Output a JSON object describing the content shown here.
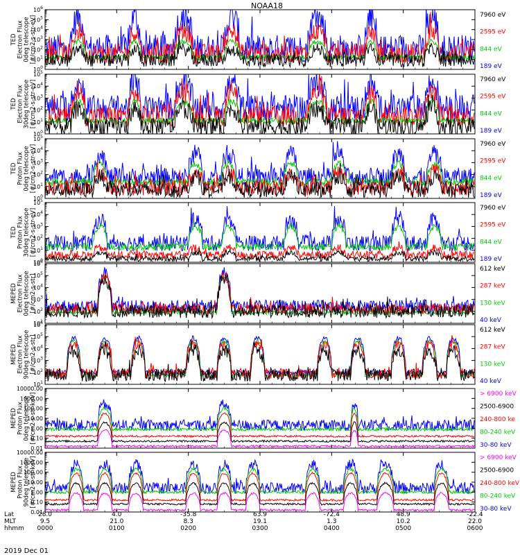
{
  "chart_data": {
    "type": "line",
    "title": "NOAA18",
    "date_label": "2019 Dec 01",
    "time_axis": {
      "row_labels": [
        "Lat",
        "MLT",
        "hhmm"
      ],
      "ticks": [
        {
          "lat": "28.0",
          "mlt": "9.5",
          "hhmm": "0000"
        },
        {
          "lat": "4.0",
          "mlt": "21.0",
          "hhmm": "0100"
        },
        {
          "lat": "-35.8",
          "mlt": "8.3",
          "hhmm": "0200"
        },
        {
          "lat": "63.9",
          "mlt": "19.1",
          "hhmm": "0300"
        },
        {
          "lat": "-72.4",
          "mlt": "1.3",
          "hhmm": "0400"
        },
        {
          "lat": "48.9",
          "mlt": "10.2",
          "hhmm": "0500"
        },
        {
          "lat": "-22.4",
          "mlt": "22.0",
          "hhmm": "0600"
        }
      ],
      "range_minutes": [
        0,
        360
      ]
    },
    "panels": [
      {
        "id": "ted-electron-0deg",
        "ylabel": [
          "TED",
          "Electron Flux",
          "0deg telescope",
          "[#/cm2-s-str-eV]"
        ],
        "yscale": "log",
        "ylim_exp": [
          0,
          6
        ],
        "ytick_labels": [
          "10^0",
          "10^1",
          "10^2",
          "10^3",
          "10^4",
          "10^5",
          "10^6"
        ],
        "legend": [
          {
            "label": "7960 eV",
            "color": "#000000"
          },
          {
            "label": "2595 eV",
            "color": "#ff0000"
          },
          {
            "label": "844 eV",
            "color": "#00cc00"
          },
          {
            "label": "189 eV",
            "color": "#0000ff"
          }
        ],
        "series": [
          {
            "color": "#0000ff",
            "base": 2.1,
            "peak": 5.2,
            "noise": 1.3,
            "spiky": true
          },
          {
            "color": "#ff0000",
            "base": 1.6,
            "peak": 3.8,
            "noise": 0.9,
            "spiky": true
          },
          {
            "color": "#00cc00",
            "base": 1.2,
            "peak": 2.8,
            "noise": 0.5,
            "spiky": false
          },
          {
            "color": "#000000",
            "base": 0.9,
            "peak": 2.0,
            "noise": 0.6,
            "spiky": true
          }
        ],
        "events": [
          [
            22,
            34
          ],
          [
            70,
            80
          ],
          [
            108,
            124
          ],
          [
            150,
            163
          ],
          [
            220,
            236
          ],
          [
            268,
            278
          ],
          [
            318,
            330
          ]
        ]
      },
      {
        "id": "ted-electron-30deg",
        "ylabel": [
          "TED",
          "Electron Flux",
          "30deg telescope",
          "[#/cm2-s-str-eV]"
        ],
        "yscale": "log",
        "ylim_exp": [
          0,
          5
        ],
        "ytick_labels": [
          "10^0",
          "10^1",
          "10^2",
          "10^3",
          "10^4",
          "10^5"
        ],
        "legend": [
          {
            "label": "7960 eV",
            "color": "#000000"
          },
          {
            "label": "2595 eV",
            "color": "#ff0000"
          },
          {
            "label": "844 eV",
            "color": "#00cc00"
          },
          {
            "label": "189 eV",
            "color": "#0000ff"
          }
        ],
        "series": [
          {
            "color": "#0000ff",
            "base": 2.2,
            "peak": 4.2,
            "noise": 1.0,
            "spiky": true
          },
          {
            "color": "#ff0000",
            "base": 1.5,
            "peak": 3.4,
            "noise": 0.8,
            "spiky": true
          },
          {
            "color": "#00cc00",
            "base": 1.1,
            "peak": 2.7,
            "noise": 0.5,
            "spiky": false
          },
          {
            "color": "#000000",
            "base": 0.6,
            "peak": 2.1,
            "noise": 0.7,
            "spiky": true
          }
        ],
        "events": [
          [
            22,
            34
          ],
          [
            70,
            80
          ],
          [
            108,
            124
          ],
          [
            150,
            163
          ],
          [
            220,
            236
          ],
          [
            268,
            278
          ],
          [
            318,
            330
          ]
        ]
      },
      {
        "id": "ted-proton-0deg",
        "ylabel": [
          "TED",
          "Proton Flux",
          "0deg telescope",
          "[#/cm2-s-str-eV]"
        ],
        "yscale": "log",
        "ylim_exp": [
          0,
          5
        ],
        "ytick_labels": [
          "10^0",
          "10^1",
          "10^2",
          "10^3",
          "10^4",
          "10^5"
        ],
        "legend": [
          {
            "label": "7960 eV",
            "color": "#000000"
          },
          {
            "label": "2595 eV",
            "color": "#ff0000"
          },
          {
            "label": "844 eV",
            "color": "#00cc00"
          },
          {
            "label": "189 eV",
            "color": "#0000ff"
          }
        ],
        "series": [
          {
            "color": "#0000ff",
            "base": 1.8,
            "peak": 3.7,
            "noise": 0.7,
            "spiky": true
          },
          {
            "color": "#00cc00",
            "base": 1.4,
            "peak": 2.9,
            "noise": 0.6,
            "spiky": false
          },
          {
            "color": "#ff0000",
            "base": 0.9,
            "peak": 2.2,
            "noise": 0.6,
            "spiky": true
          },
          {
            "color": "#000000",
            "base": 0.7,
            "peak": 1.8,
            "noise": 0.6,
            "spiky": true
          }
        ],
        "events": [
          [
            40,
            52
          ],
          [
            120,
            132
          ],
          [
            148,
            160
          ],
          [
            200,
            212
          ],
          [
            240,
            252
          ],
          [
            290,
            302
          ],
          [
            320,
            332
          ]
        ]
      },
      {
        "id": "ted-proton-30deg",
        "ylabel": [
          "TED",
          "Proton Flux",
          "30deg telescope",
          "[#/cm2-s-str-eV]"
        ],
        "yscale": "log",
        "ylim_exp": [
          0,
          5
        ],
        "ytick_labels": [
          "10^0",
          "10^1",
          "10^2",
          "10^3",
          "10^4",
          "10^5"
        ],
        "legend": [
          {
            "label": "7960 eV",
            "color": "#000000"
          },
          {
            "label": "2595 eV",
            "color": "#ff0000"
          },
          {
            "label": "844 eV",
            "color": "#00cc00"
          },
          {
            "label": "189 eV",
            "color": "#0000ff"
          }
        ],
        "series": [
          {
            "color": "#0000ff",
            "base": 1.6,
            "peak": 3.6,
            "noise": 0.6,
            "spiky": true
          },
          {
            "color": "#00cc00",
            "base": 1.3,
            "peak": 3.0,
            "noise": 0.6,
            "spiky": false
          },
          {
            "color": "#ff0000",
            "base": 0.6,
            "peak": 1.2,
            "noise": 0.3,
            "spiky": true
          },
          {
            "color": "#000000",
            "base": 0.3,
            "peak": 0.8,
            "noise": 0.2,
            "spiky": true
          }
        ],
        "events": [
          [
            40,
            52
          ],
          [
            120,
            132
          ],
          [
            148,
            160
          ],
          [
            200,
            212
          ],
          [
            240,
            252
          ],
          [
            290,
            302
          ],
          [
            320,
            332
          ]
        ]
      },
      {
        "id": "meped-electron-0deg",
        "ylabel": [
          "MEPED",
          "Electron Flux",
          "0deg telescope",
          "[#/cm2-s-str]"
        ],
        "yscale": "log",
        "ylim_exp": [
          1,
          6
        ],
        "ytick_labels": [
          "10^1",
          "10^2",
          "10^3",
          "10^4",
          "10^5",
          "10^6"
        ],
        "legend": [
          {
            "label": "612 keV",
            "color": "#000000"
          },
          {
            "label": "287 keV",
            "color": "#ff0000"
          },
          {
            "label": "130 keV",
            "color": "#00cc00"
          },
          {
            "label": "40 keV",
            "color": "#0000ff"
          }
        ],
        "series": [
          {
            "color": "#0000ff",
            "base": 2.4,
            "peak": 5.2,
            "noise": 0.5,
            "spiky": true
          },
          {
            "color": "#00cc00",
            "base": 1.9,
            "peak": 5.0,
            "noise": 0.3,
            "spiky": false
          },
          {
            "color": "#ff0000",
            "base": 2.2,
            "peak": 4.9,
            "noise": 0.4,
            "spiky": true
          },
          {
            "color": "#000000",
            "base": 2.0,
            "peak": 4.7,
            "noise": 0.5,
            "spiky": true
          }
        ],
        "events": [
          [
            44,
            56
          ],
          [
            144,
            156
          ]
        ]
      },
      {
        "id": "meped-electron-90deg",
        "ylabel": [
          "MEPED",
          "Electron Flux",
          "90deg telescope",
          "[#/cm2-s-str]"
        ],
        "yscale": "log",
        "ylim_exp": [
          1,
          6
        ],
        "ytick_labels": [
          "10^1",
          "10^2",
          "10^3",
          "10^4",
          "10^5",
          "10^6"
        ],
        "legend": [
          {
            "label": "612 keV",
            "color": "#000000"
          },
          {
            "label": "287 keV",
            "color": "#ff0000"
          },
          {
            "label": "130 keV",
            "color": "#00cc00"
          },
          {
            "label": "40 keV",
            "color": "#0000ff"
          }
        ],
        "series": [
          {
            "color": "#0000ff",
            "base": 2.0,
            "peak": 4.9,
            "noise": 0.4,
            "spiky": false
          },
          {
            "color": "#00cc00",
            "base": 1.8,
            "peak": 4.6,
            "noise": 0.3,
            "spiky": false
          },
          {
            "color": "#ff0000",
            "base": 1.9,
            "peak": 4.4,
            "noise": 0.4,
            "spiky": true
          },
          {
            "color": "#000000",
            "base": 1.8,
            "peak": 3.8,
            "noise": 0.5,
            "spiky": true
          }
        ],
        "events": [
          [
            18,
            30
          ],
          [
            44,
            56
          ],
          [
            72,
            84
          ],
          [
            118,
            130
          ],
          [
            144,
            156
          ],
          [
            172,
            184
          ],
          [
            228,
            240
          ],
          [
            256,
            268
          ],
          [
            290,
            302
          ],
          [
            316,
            328
          ],
          [
            336,
            348
          ]
        ]
      },
      {
        "id": "meped-proton-0deg",
        "ylabel": [
          "MEPED",
          "Proton Flux",
          "0deg telescope",
          "[#/cm2-s-str-keV]"
        ],
        "yscale": "log",
        "ylim_exp": [
          -2,
          4
        ],
        "ytick_labels": [
          "0.01",
          "0.10",
          "1.00",
          "10.00",
          "100.00",
          "1000.00",
          "10000.00"
        ],
        "legend": [
          {
            "label": "> 6900 keV",
            "color": "#ff00ff"
          },
          {
            "label": "2500-6900",
            "color": "#000000"
          },
          {
            "label": "240-800 ke",
            "color": "#ff0000"
          },
          {
            "label": "80-240 keV",
            "color": "#00cc00"
          },
          {
            "label": "30-80 keV",
            "color": "#0000ff"
          }
        ],
        "series": [
          {
            "color": "#0000ff",
            "base": 0.3,
            "peak": 2.4,
            "noise": 0.5,
            "spiky": true
          },
          {
            "color": "#00cc00",
            "base": -0.1,
            "peak": 2.0,
            "noise": 0.3,
            "spiky": false
          },
          {
            "color": "#ff0000",
            "base": -0.8,
            "peak": 1.5,
            "noise": 0.2,
            "spiky": false
          },
          {
            "color": "#000000",
            "base": -1.3,
            "peak": 0.6,
            "noise": 0.2,
            "spiky": false
          },
          {
            "color": "#ff00ff",
            "base": -1.8,
            "peak": -0.2,
            "noise": 0.2,
            "spiky": false
          }
        ],
        "events": [
          [
            44,
            56
          ],
          [
            144,
            156
          ],
          [
            256,
            262
          ]
        ]
      },
      {
        "id": "meped-proton-90deg",
        "ylabel": [
          "MEPED",
          "Proton Flux",
          "90deg telescope",
          "[#/cm2-s-str-keV]"
        ],
        "yscale": "log",
        "ylim_exp": [
          -2,
          4
        ],
        "ytick_labels": [
          "0.01",
          "0.10",
          "1.00",
          "10.00",
          "100.00",
          "1000.00",
          "10000.00"
        ],
        "legend": [
          {
            "label": "> 6900 keV",
            "color": "#ff00ff"
          },
          {
            "label": "2500-6900",
            "color": "#000000"
          },
          {
            "label": "240-800 keV",
            "color": "#ff0000"
          },
          {
            "label": "80-240 keV",
            "color": "#00cc00"
          },
          {
            "label": "30-80 keV",
            "color": "#0000ff"
          }
        ],
        "series": [
          {
            "color": "#0000ff",
            "base": 0.4,
            "peak": 2.8,
            "noise": 0.5,
            "spiky": true
          },
          {
            "color": "#00cc00",
            "base": 0.0,
            "peak": 2.3,
            "noise": 0.3,
            "spiky": false
          },
          {
            "color": "#ff0000",
            "base": -0.8,
            "peak": 1.9,
            "noise": 0.2,
            "spiky": false
          },
          {
            "color": "#000000",
            "base": -1.2,
            "peak": 0.9,
            "noise": 0.2,
            "spiky": false
          },
          {
            "color": "#ff00ff",
            "base": -1.8,
            "peak": -0.1,
            "noise": 0.2,
            "spiky": false
          }
        ],
        "events": [
          [
            20,
            32
          ],
          [
            44,
            56
          ],
          [
            70,
            82
          ],
          [
            118,
            130
          ],
          [
            144,
            156
          ],
          [
            168,
            180
          ],
          [
            218,
            230
          ],
          [
            250,
            262
          ],
          [
            278,
            292
          ],
          [
            326,
            338
          ]
        ]
      }
    ]
  }
}
